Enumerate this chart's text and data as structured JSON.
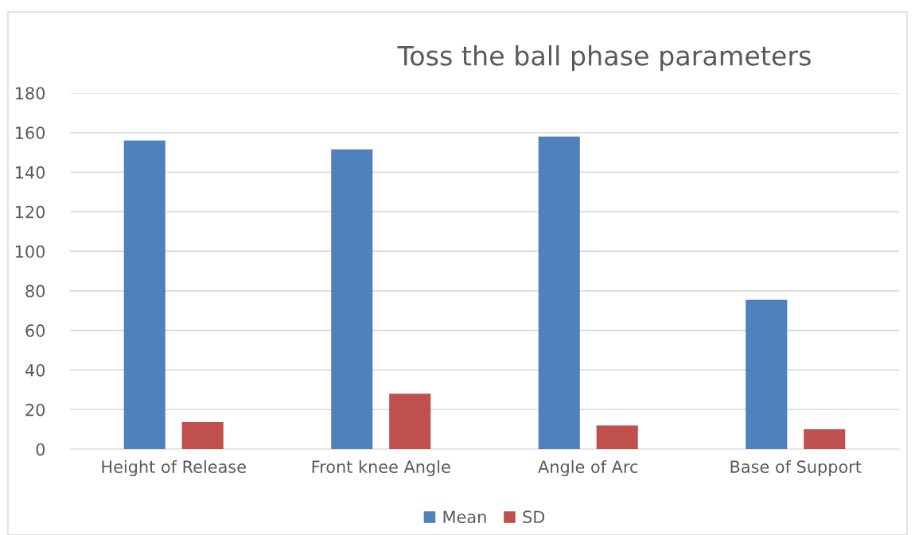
{
  "chart_data": {
    "type": "bar",
    "title": "Toss the ball phase parameters",
    "categories": [
      "Height of Release",
      "Front knee Angle",
      "Angle of Arc",
      "Base of Support"
    ],
    "series": [
      {
        "name": "Mean",
        "color": "#4f81bd",
        "values": [
          156,
          151.5,
          158,
          75.5
        ]
      },
      {
        "name": "SD",
        "color": "#c0504d",
        "values": [
          13.7,
          28,
          12,
          10
        ]
      }
    ],
    "ylim": [
      0,
      180
    ],
    "yticks": [
      0,
      20,
      40,
      60,
      80,
      100,
      120,
      140,
      160,
      180
    ],
    "grid": "y",
    "legend": "bottom"
  }
}
